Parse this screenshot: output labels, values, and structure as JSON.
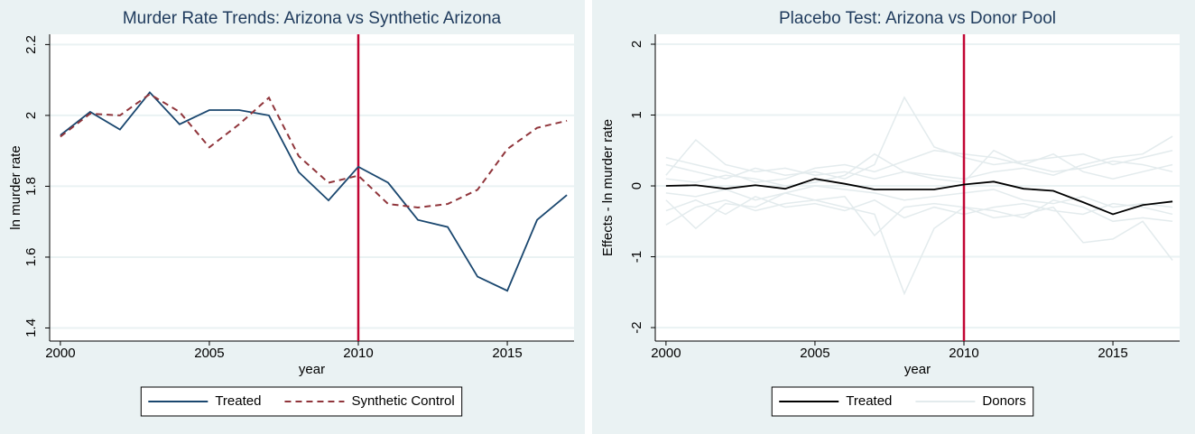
{
  "chart_data": [
    {
      "type": "line",
      "title": "Murder Rate Trends: Arizona vs Synthetic Arizona",
      "x_label": "year",
      "y_label": "ln murder rate",
      "x": [
        2000,
        2001,
        2002,
        2003,
        2004,
        2005,
        2006,
        2007,
        2008,
        2009,
        2010,
        2011,
        2012,
        2013,
        2014,
        2015,
        2016,
        2017
      ],
      "series": [
        {
          "name": "Treated",
          "color": "#1a476f",
          "dash": false,
          "values": [
            1.944,
            2.01,
            1.96,
            2.065,
            1.975,
            2.015,
            2.015,
            2.0,
            1.84,
            1.76,
            1.855,
            1.81,
            1.705,
            1.685,
            1.545,
            1.505,
            1.705,
            1.775
          ]
        },
        {
          "name": "Synthetic Control",
          "color": "#90353b",
          "dash": true,
          "values": [
            1.94,
            2.005,
            2.0,
            2.06,
            2.01,
            1.91,
            1.975,
            2.05,
            1.885,
            1.81,
            1.83,
            1.75,
            1.74,
            1.75,
            1.79,
            1.905,
            1.965,
            1.985
          ]
        }
      ],
      "xlim": [
        1999.64,
        2017.24
      ],
      "xticks": [
        2000,
        2005,
        2010,
        2015
      ],
      "ylim": [
        1.363,
        2.229
      ],
      "yticks": [
        1.4,
        1.6,
        1.8,
        2,
        2.2
      ],
      "grid": true,
      "vline": 2010,
      "vline_color": "#c10534",
      "legend": "bottom"
    },
    {
      "type": "line",
      "title": "Placebo Test: Arizona vs Donor Pool",
      "x_label": "year",
      "y_label": "Effects - ln murder rate",
      "x": [
        2000,
        2001,
        2002,
        2003,
        2004,
        2005,
        2006,
        2007,
        2008,
        2009,
        2010,
        2011,
        2012,
        2013,
        2014,
        2015,
        2016,
        2017
      ],
      "series": [
        {
          "name": "Treated",
          "color": "#000000",
          "dash": false,
          "values": [
            0,
            0.01,
            -0.04,
            0.01,
            -0.04,
            0.1,
            0.03,
            -0.05,
            -0.05,
            -0.05,
            0.02,
            0.06,
            -0.04,
            -0.07,
            -0.23,
            -0.4,
            -0.27,
            -0.22
          ]
        },
        {
          "name": "Donors",
          "color": "#e3ebed",
          "dash": false,
          "lines": [
            [
              0.3,
              0.2,
              0.1,
              0.25,
              0.15,
              0.2,
              0.1,
              0.3,
              1.25,
              0.55,
              0.4,
              0.3,
              0.35,
              0.4,
              0.45,
              0.3,
              0.4,
              0.5
            ],
            [
              -0.55,
              -0.3,
              -0.2,
              -0.35,
              -0.25,
              -0.2,
              -0.3,
              -0.4,
              -1.52,
              -0.6,
              -0.3,
              -0.45,
              -0.4,
              -0.3,
              -0.8,
              -0.75,
              -0.5,
              -1.05
            ],
            [
              0.15,
              0.65,
              0.3,
              0.2,
              0.25,
              0.15,
              0.2,
              0.1,
              0.2,
              0.15,
              0.1,
              0.2,
              0.25,
              0.15,
              0.3,
              0.4,
              0.45,
              0.7
            ],
            [
              -0.2,
              -0.6,
              -0.25,
              -0.3,
              -0.1,
              -0.2,
              -0.15,
              -0.7,
              -0.3,
              -0.25,
              -0.3,
              -0.35,
              -0.45,
              -0.2,
              -0.3,
              -0.5,
              -0.45,
              -0.5
            ],
            [
              0.1,
              0.05,
              0.15,
              0.1,
              0.0,
              0.05,
              0.15,
              0.45,
              0.2,
              0.1,
              0.05,
              0.5,
              0.3,
              0.2,
              0.25,
              0.35,
              0.3,
              0.2
            ],
            [
              -0.1,
              -0.15,
              -0.05,
              -0.2,
              -0.1,
              0.0,
              -0.05,
              -0.1,
              -0.2,
              -0.15,
              -0.1,
              -0.05,
              -0.2,
              -0.25,
              -0.15,
              -0.3,
              -0.25,
              -0.3
            ],
            [
              0.4,
              0.3,
              0.2,
              0.05,
              0.1,
              0.25,
              0.3,
              0.2,
              0.35,
              0.5,
              0.45,
              0.4,
              0.3,
              0.45,
              0.2,
              0.1,
              0.2,
              0.3
            ],
            [
              -0.35,
              -0.2,
              -0.4,
              -0.15,
              -0.3,
              -0.25,
              -0.35,
              -0.2,
              -0.45,
              -0.3,
              -0.4,
              -0.3,
              -0.25,
              -0.35,
              -0.4,
              -0.25,
              -0.3,
              -0.4
            ]
          ]
        }
      ],
      "xlim": [
        1999.64,
        2017.24
      ],
      "xticks": [
        2000,
        2005,
        2010,
        2015
      ],
      "ylim": [
        -2.19,
        2.14
      ],
      "yticks": [
        -2,
        -1,
        0,
        1,
        2
      ],
      "grid": true,
      "vline": 2010,
      "vline_color": "#c10534",
      "legend": "bottom"
    }
  ]
}
